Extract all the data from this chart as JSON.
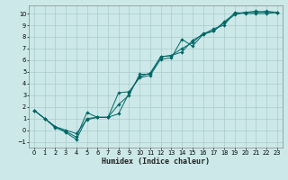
{
  "title": "",
  "xlabel": "Humidex (Indice chaleur)",
  "ylabel": "",
  "background_color": "#cce8e8",
  "grid_color": "#aacccc",
  "line_color": "#006666",
  "xlim": [
    -0.5,
    23.5
  ],
  "ylim": [
    -1.5,
    10.7
  ],
  "xticks": [
    0,
    1,
    2,
    3,
    4,
    5,
    6,
    7,
    8,
    9,
    10,
    11,
    12,
    13,
    14,
    15,
    16,
    17,
    18,
    19,
    20,
    21,
    22,
    23
  ],
  "yticks": [
    -1,
    0,
    1,
    2,
    3,
    4,
    5,
    6,
    7,
    8,
    9,
    10
  ],
  "line1_x": [
    0,
    1,
    2,
    3,
    4,
    5,
    6,
    7,
    8,
    9,
    10,
    11,
    12,
    13,
    14,
    15,
    16,
    17,
    18,
    19,
    20,
    21,
    22,
    23
  ],
  "line1_y": [
    1.7,
    1.0,
    0.3,
    -0.2,
    -0.8,
    1.0,
    1.1,
    1.1,
    2.2,
    3.0,
    4.8,
    4.8,
    6.3,
    6.4,
    7.0,
    7.5,
    8.3,
    8.5,
    9.3,
    10.0,
    10.1,
    10.2,
    10.1,
    10.1
  ],
  "line2_x": [
    0,
    1,
    2,
    3,
    4,
    5,
    6,
    7,
    8,
    9,
    10,
    11,
    12,
    13,
    14,
    15,
    16,
    17,
    18,
    19,
    20,
    21,
    22,
    23
  ],
  "line2_y": [
    1.7,
    1.0,
    0.2,
    -0.1,
    -0.6,
    1.5,
    1.1,
    1.1,
    3.2,
    3.3,
    4.5,
    4.7,
    6.1,
    6.2,
    7.8,
    7.2,
    8.2,
    8.5,
    9.2,
    9.9,
    10.1,
    10.1,
    10.2,
    10.1
  ],
  "line3_x": [
    0,
    1,
    2,
    3,
    4,
    5,
    6,
    7,
    8,
    9,
    10,
    11,
    12,
    13,
    14,
    15,
    16,
    17,
    18,
    19,
    20,
    21,
    22,
    23
  ],
  "line3_y": [
    1.7,
    1.0,
    0.3,
    -0.0,
    -0.3,
    0.9,
    1.1,
    1.1,
    1.4,
    3.2,
    4.6,
    4.9,
    6.3,
    6.4,
    6.7,
    7.7,
    8.2,
    8.7,
    9.0,
    10.1,
    10.0,
    10.0,
    10.0,
    10.1
  ],
  "xlabel_fontsize": 6.0,
  "tick_fontsize": 4.8,
  "marker_size": 1.8,
  "line_width": 0.7
}
